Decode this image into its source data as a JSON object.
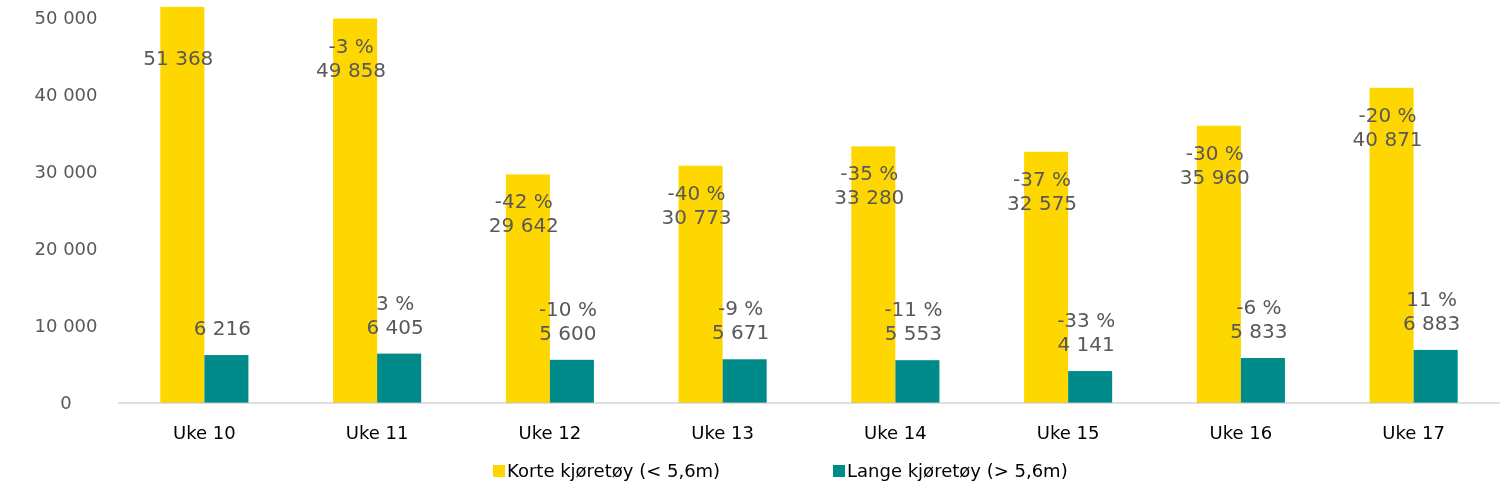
{
  "chart_data": {
    "type": "bar",
    "categories": [
      "Uke 10",
      "Uke 11",
      "Uke 12",
      "Uke 13",
      "Uke 14",
      "Uke 15",
      "Uke 16",
      "Uke 17"
    ],
    "series": [
      {
        "name": "Korte kjøretøy (< 5,6m)",
        "color": "#ffd700",
        "values": [
          51368,
          49858,
          29642,
          30773,
          33280,
          32575,
          35960,
          40871
        ],
        "value_labels": [
          "51 368",
          "-3 %\n49 858",
          "-42 %\n29 642",
          "-40 %\n30 773",
          "-35 %\n33 280",
          "-37 %\n32 575",
          "-30 %\n35 960",
          "-20 %\n40 871"
        ]
      },
      {
        "name": "Lange kjøretøy (> 5,6m)",
        "color": "#008b8b",
        "values": [
          6216,
          6405,
          5600,
          5671,
          5553,
          4141,
          5833,
          6883
        ],
        "value_labels": [
          "6 216",
          "3 %\n6 405",
          "-10 %\n5 600",
          "-9 %\n5 671",
          "-11 %\n5 553",
          "-33 %\n4 141",
          "-6 %\n5 833",
          "11 %\n6 883"
        ]
      }
    ],
    "ylim": [
      0,
      52000
    ],
    "yticks": [
      {
        "value": 0,
        "label": "0"
      },
      {
        "value": 10000,
        "label": "10 000"
      },
      {
        "value": 20000,
        "label": "20 000"
      },
      {
        "value": 30000,
        "label": "30 000"
      },
      {
        "value": 40000,
        "label": "40 000"
      },
      {
        "value": 50000,
        "label": "50 000"
      }
    ],
    "grid": false,
    "legend": "bottom"
  }
}
